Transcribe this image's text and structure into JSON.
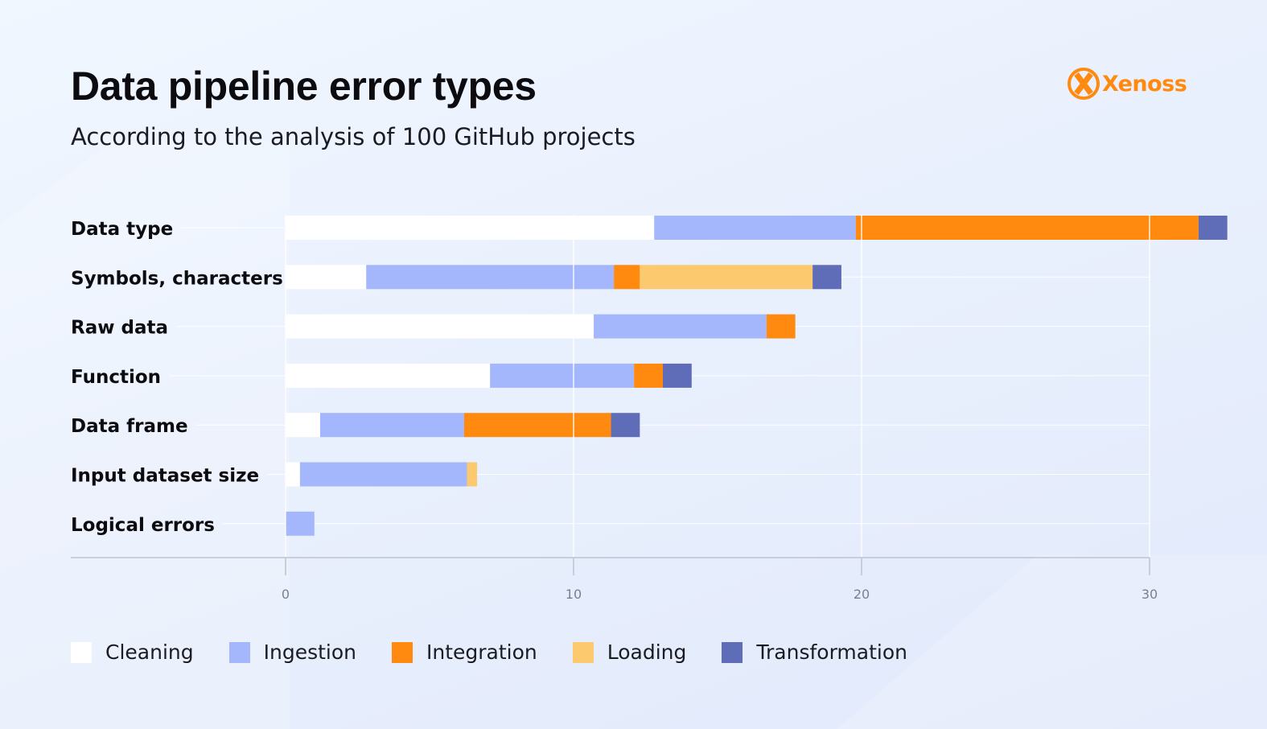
{
  "header": {
    "title": "Data pipeline error types",
    "subtitle": "According to the analysis of 100 GitHub projects"
  },
  "brand": {
    "name": "Xenoss",
    "color": "#ff8a0f"
  },
  "chart_data": {
    "type": "bar",
    "orientation": "horizontal",
    "stacked": true,
    "title": "Data pipeline error types",
    "subtitle": "According to the analysis of 100 GitHub projects",
    "categories": [
      "Data type",
      "Symbols, characters",
      "Raw data",
      "Function",
      "Data frame",
      "Input dataset size",
      "Logical errors"
    ],
    "series": [
      {
        "name": "Cleaning",
        "color": "#ffffff",
        "values": [
          12.8,
          2.8,
          10.7,
          7.1,
          1.2,
          0.5,
          0
        ]
      },
      {
        "name": "Ingestion",
        "color": "#a4b6fc",
        "values": [
          7,
          8.6,
          6,
          5,
          5,
          5.8,
          1
        ]
      },
      {
        "name": "Integration",
        "color": "#ff8a0f",
        "values": [
          11.9,
          0.9,
          1,
          1,
          5.1,
          0,
          0
        ]
      },
      {
        "name": "Loading",
        "color": "#fdc96f",
        "values": [
          0,
          6,
          0,
          0,
          0,
          0.35,
          0
        ]
      },
      {
        "name": "Transformation",
        "color": "#5f6db8",
        "values": [
          1,
          1,
          0,
          1,
          1,
          0,
          0
        ]
      }
    ],
    "xlim": [
      0,
      31
    ],
    "xticks": [
      0,
      10,
      20,
      30
    ],
    "xticklabels": [
      "0",
      "10",
      "20",
      "30"
    ],
    "grid": true,
    "legend_position": "bottom-left"
  }
}
